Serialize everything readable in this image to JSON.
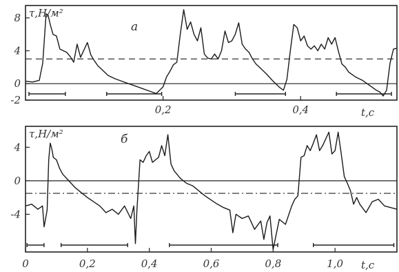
{
  "chart_data": [
    {
      "type": "line",
      "panel_label": "а",
      "ylabel": "τ,Н/м²",
      "xlabel": "t,c",
      "xlim": [
        0,
        0.54
      ],
      "ylim": [
        -2,
        9.5
      ],
      "x_tick_labels": [
        {
          "x": 0.2,
          "label": "0,2"
        },
        {
          "x": 0.4,
          "label": "0,4"
        }
      ],
      "y_tick_labels": [
        {
          "y": 8,
          "label": "8"
        },
        {
          "y": 4,
          "label": "4"
        },
        {
          "y": 0,
          "label": "0"
        },
        {
          "y": -2,
          "label": "-2"
        }
      ],
      "mean_level": 3.0,
      "zero_level": 0,
      "x": [
        0,
        0.01,
        0.02,
        0.025,
        0.03,
        0.033,
        0.036,
        0.04,
        0.045,
        0.05,
        0.06,
        0.065,
        0.07,
        0.075,
        0.08,
        0.09,
        0.095,
        0.1,
        0.105,
        0.11,
        0.115,
        0.12,
        0.13,
        0.14,
        0.15,
        0.16,
        0.17,
        0.18,
        0.19,
        0.195,
        0.2,
        0.205,
        0.21,
        0.215,
        0.22,
        0.225,
        0.23,
        0.235,
        0.24,
        0.245,
        0.25,
        0.255,
        0.26,
        0.265,
        0.27,
        0.275,
        0.28,
        0.285,
        0.29,
        0.295,
        0.3,
        0.305,
        0.31,
        0.315,
        0.32,
        0.325,
        0.33,
        0.335,
        0.34,
        0.35,
        0.36,
        0.37,
        0.375,
        0.38,
        0.385,
        0.39,
        0.395,
        0.4,
        0.405,
        0.41,
        0.415,
        0.42,
        0.425,
        0.43,
        0.435,
        0.44,
        0.445,
        0.45,
        0.455,
        0.46,
        0.465,
        0.47,
        0.475,
        0.48,
        0.49,
        0.5,
        0.51,
        0.515,
        0.52,
        0.525,
        0.53,
        0.535,
        0.54
      ],
      "values": [
        0.3,
        0.2,
        0.4,
        2.5,
        8.5,
        8.3,
        7.2,
        6.0,
        5.8,
        4.2,
        3.8,
        3.3,
        2.6,
        4.8,
        3.2,
        5.0,
        3.5,
        2.8,
        2.2,
        1.8,
        1.4,
        1.0,
        0.6,
        0.3,
        0.0,
        -0.3,
        -0.6,
        -0.9,
        -1.2,
        -0.8,
        -0.4,
        0.8,
        1.5,
        2.3,
        2.6,
        6.0,
        9.0,
        6.6,
        7.5,
        6.0,
        5.2,
        6.8,
        3.6,
        3.1,
        3.0,
        3.6,
        3.0,
        4.0,
        6.4,
        5.0,
        5.2,
        6.0,
        7.4,
        4.8,
        4.2,
        3.8,
        3.0,
        2.4,
        2.0,
        1.2,
        0.3,
        -0.5,
        -0.8,
        0.5,
        4.0,
        7.2,
        6.8,
        5.2,
        5.8,
        4.6,
        4.2,
        4.6,
        4.0,
        4.8,
        4.2,
        5.6,
        4.8,
        5.6,
        3.9,
        2.4,
        2.0,
        1.4,
        1.1,
        0.8,
        0.4,
        -0.2,
        -0.8,
        -1.0,
        -1.5,
        -0.8,
        2.5,
        4.2,
        4.3
      ],
      "reference_segments_x": [
        [
          0.005,
          0.058
        ],
        [
          0.118,
          0.198
        ],
        [
          0.305,
          0.378
        ],
        [
          0.452,
          0.532
        ]
      ]
    },
    {
      "type": "line",
      "panel_label": "б",
      "ylabel": "τ,Н/м²",
      "xlabel": "t,c",
      "xlim": [
        0,
        1.2
      ],
      "ylim": [
        -8.5,
        6.5
      ],
      "x_tick_labels": [
        {
          "x": 0,
          "label": "0"
        },
        {
          "x": 0.2,
          "label": "0,2"
        },
        {
          "x": 0.4,
          "label": "0,4"
        },
        {
          "x": 0.6,
          "label": "0,6"
        },
        {
          "x": 0.8,
          "label": "0,8"
        },
        {
          "x": 1.0,
          "label": "1,0"
        }
      ],
      "y_tick_labels": [
        {
          "y": 4,
          "label": "4"
        },
        {
          "y": 0,
          "label": "0"
        },
        {
          "y": -4,
          "label": "-4"
        }
      ],
      "mean_level": -1.5,
      "zero_level": 0,
      "x": [
        0,
        0.02,
        0.04,
        0.055,
        0.06,
        0.07,
        0.075,
        0.08,
        0.085,
        0.09,
        0.1,
        0.11,
        0.12,
        0.14,
        0.16,
        0.18,
        0.2,
        0.22,
        0.24,
        0.26,
        0.28,
        0.3,
        0.32,
        0.34,
        0.35,
        0.355,
        0.36,
        0.37,
        0.38,
        0.39,
        0.4,
        0.41,
        0.42,
        0.43,
        0.44,
        0.45,
        0.46,
        0.47,
        0.48,
        0.5,
        0.52,
        0.54,
        0.56,
        0.58,
        0.6,
        0.62,
        0.64,
        0.66,
        0.67,
        0.68,
        0.7,
        0.72,
        0.74,
        0.76,
        0.77,
        0.78,
        0.79,
        0.8,
        0.82,
        0.84,
        0.86,
        0.87,
        0.88,
        0.89,
        0.9,
        0.91,
        0.92,
        0.93,
        0.94,
        0.95,
        0.96,
        0.97,
        0.98,
        0.99,
        1.0,
        1.01,
        1.02,
        1.03,
        1.04,
        1.05,
        1.06,
        1.07,
        1.08,
        1.1,
        1.12,
        1.14,
        1.16,
        1.18,
        1.2
      ],
      "values": [
        -3.0,
        -2.8,
        -3.4,
        -3.0,
        -5.5,
        -3.5,
        2.5,
        4.5,
        3.8,
        2.8,
        2.5,
        1.5,
        0.8,
        0.0,
        -0.8,
        -1.4,
        -2.0,
        -2.5,
        -3.0,
        -3.8,
        -3.4,
        -4.0,
        -3.0,
        -4.5,
        -3.0,
        -7.5,
        -3.5,
        2.5,
        2.2,
        3.0,
        3.5,
        2.2,
        2.5,
        2.8,
        4.2,
        3.0,
        5.5,
        2.0,
        1.2,
        0.3,
        -0.3,
        -0.6,
        -1.2,
        -1.8,
        -2.3,
        -2.8,
        -3.2,
        -3.5,
        -6.2,
        -4.0,
        -4.5,
        -4.2,
        -5.8,
        -4.8,
        -7.0,
        -5.0,
        -4.2,
        -8.2,
        -4.6,
        -5.2,
        -3.0,
        -2.2,
        -1.8,
        2.8,
        3.0,
        4.2,
        3.6,
        4.5,
        5.5,
        3.6,
        4.2,
        5.0,
        5.8,
        3.2,
        3.6,
        5.8,
        3.2,
        0.5,
        -0.3,
        -1.2,
        -2.8,
        -2.0,
        -2.8,
        -3.8,
        -2.5,
        -2.2,
        -3.0,
        -3.2,
        -3.4
      ],
      "reference_segments_x": [
        [
          0.005,
          0.06
        ],
        [
          0.115,
          0.33
        ],
        [
          0.465,
          0.815
        ],
        [
          0.93,
          1.19
        ]
      ]
    }
  ]
}
